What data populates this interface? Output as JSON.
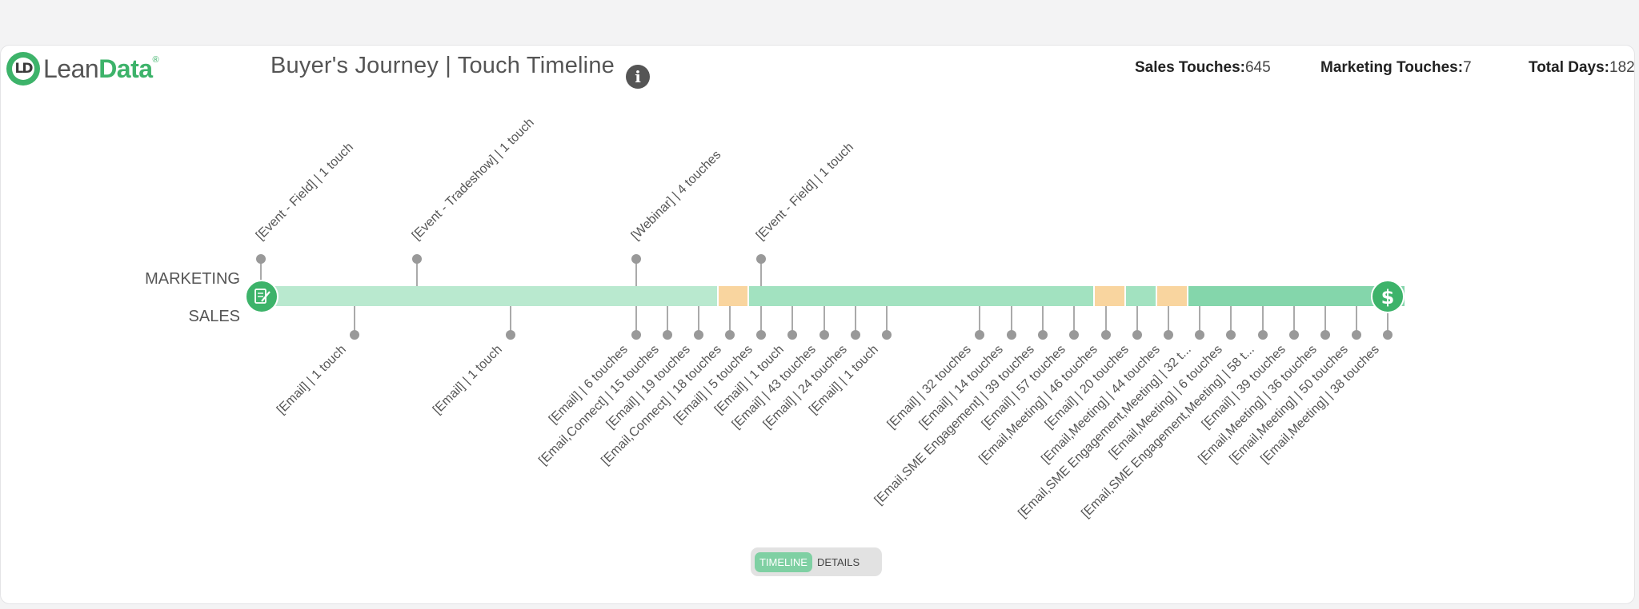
{
  "logo": {
    "mark": "LD",
    "lean": "Lean",
    "data": "Data",
    "reg": "®"
  },
  "title": "Buyer's Journey | Touch Timeline",
  "info_icon": "info-icon",
  "stats": {
    "sales_label": "Sales Touches:",
    "sales_value": "645",
    "marketing_label": "Marketing Touches:",
    "marketing_value": "7",
    "days_label": "Total Days:",
    "days_value": "182"
  },
  "rows": {
    "marketing": "MARKETING",
    "sales": "SALES"
  },
  "icons": {
    "start": "document-edit-icon",
    "end": "dollar-icon"
  },
  "colors": {
    "light_green": "#b9e9cf",
    "mid_green": "#a2e2c0",
    "dark_green": "#84d6ab",
    "orange": "#f9d59f",
    "stem": "#aaaaaa",
    "dot": "#999999",
    "badge": "#3db36a"
  },
  "marketing_touches": [
    "[Event - Field] | 1 touch",
    "[Event - Tradeshow] | 1 touch",
    "[Webinar] | 4 touches",
    "[Event - Field] | 1 touch"
  ],
  "sales_touches": [
    "[Email] | 1 touch",
    "[Email] | 1 touch",
    "[Email] | 6 touches",
    "[Email,Connect] | 15 touches",
    "[Email] | 19 touches",
    "[Email,Connect] | 18 touches",
    "[Email] | 5 touches",
    "[Email] | 1 touch",
    "[Email] | 43 touches",
    "[Email] | 24 touches",
    "[Email] | 1 touch",
    "[Email] | 32 touches",
    "[Email] | 14 touches",
    "[Email,SME Engagement] | 39 touches",
    "[Email] | 57 touches",
    "[Email,Meeting] | 46 touches",
    "[Email] | 20 touches",
    "[Email,Meeting] | 44 touches",
    "[Email,SME Engagement,Meeting] | 32 t...",
    "[Email,Meeting] | 6 touches",
    "[Email,SME Engagement,Meeting] | 58 t...",
    "[Email] | 39 touches",
    "[Email,Meeting] | 36 touches",
    "[Email,Meeting] | 50 touches",
    "[Email,Meeting] | 38 touches"
  ],
  "toggle": {
    "timeline": "TIMELINE",
    "details": "DETAILS",
    "active": "timeline"
  }
}
